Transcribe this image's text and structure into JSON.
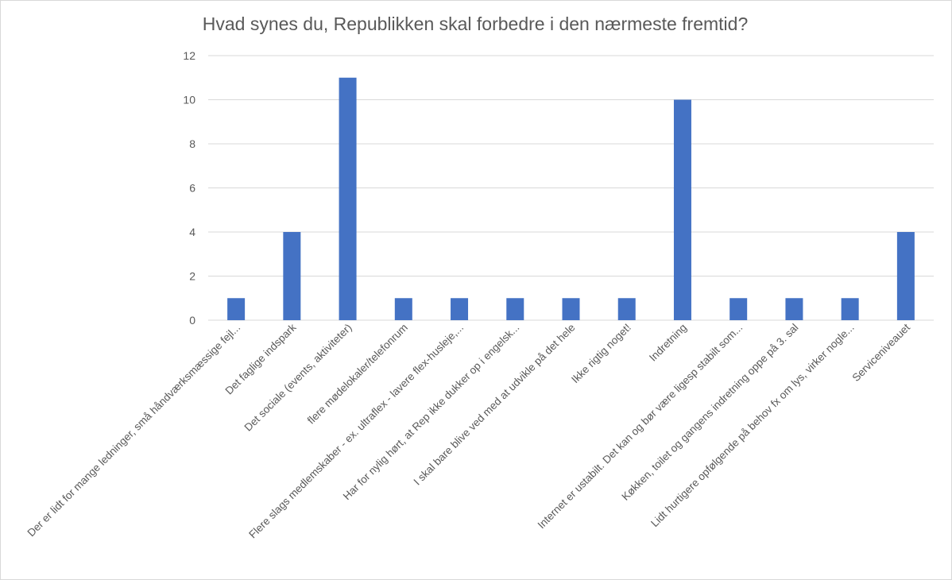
{
  "chart_data": {
    "type": "bar",
    "title": "Hvad synes du, Republikken skal forbedre i den nærmeste fremtid?",
    "categories": [
      "Der er lidt for mange ledninger, små håndværksmæssige fejl...",
      "Det faglige indspark",
      "Det sociale (events, aktiviteter)",
      "flere mødelokaler/telefonrum",
      "Flere slags medlemskaber - ex. ultraflex - lavere flex-husleje,...",
      "Har for nylig hørt, at Rep ikke dukker op i engelsk...",
      "I skal bare blive ved med at udvikle på det hele",
      "Ikke rigtig noget!",
      "Indretning",
      "Internet er ustabilt. Det kan og bør være ligesp stabilt som...",
      "Køkken, toilet og gangens indretning oppe på 3. sal",
      "Lidt hurtigere opfølgende på behov fx om lys, virker nogle...",
      "Serviceniveauet"
    ],
    "values": [
      1,
      4,
      11,
      1,
      1,
      1,
      1,
      1,
      10,
      1,
      1,
      1,
      4
    ],
    "ylim": [
      0,
      12
    ],
    "yticks": [
      0,
      2,
      4,
      6,
      8,
      10,
      12
    ],
    "xlabel": "",
    "ylabel": "",
    "grid": true,
    "legend": "none",
    "bar_color": "#4472C4",
    "grid_color": "#D9D9D9",
    "text_color": "#595959"
  }
}
